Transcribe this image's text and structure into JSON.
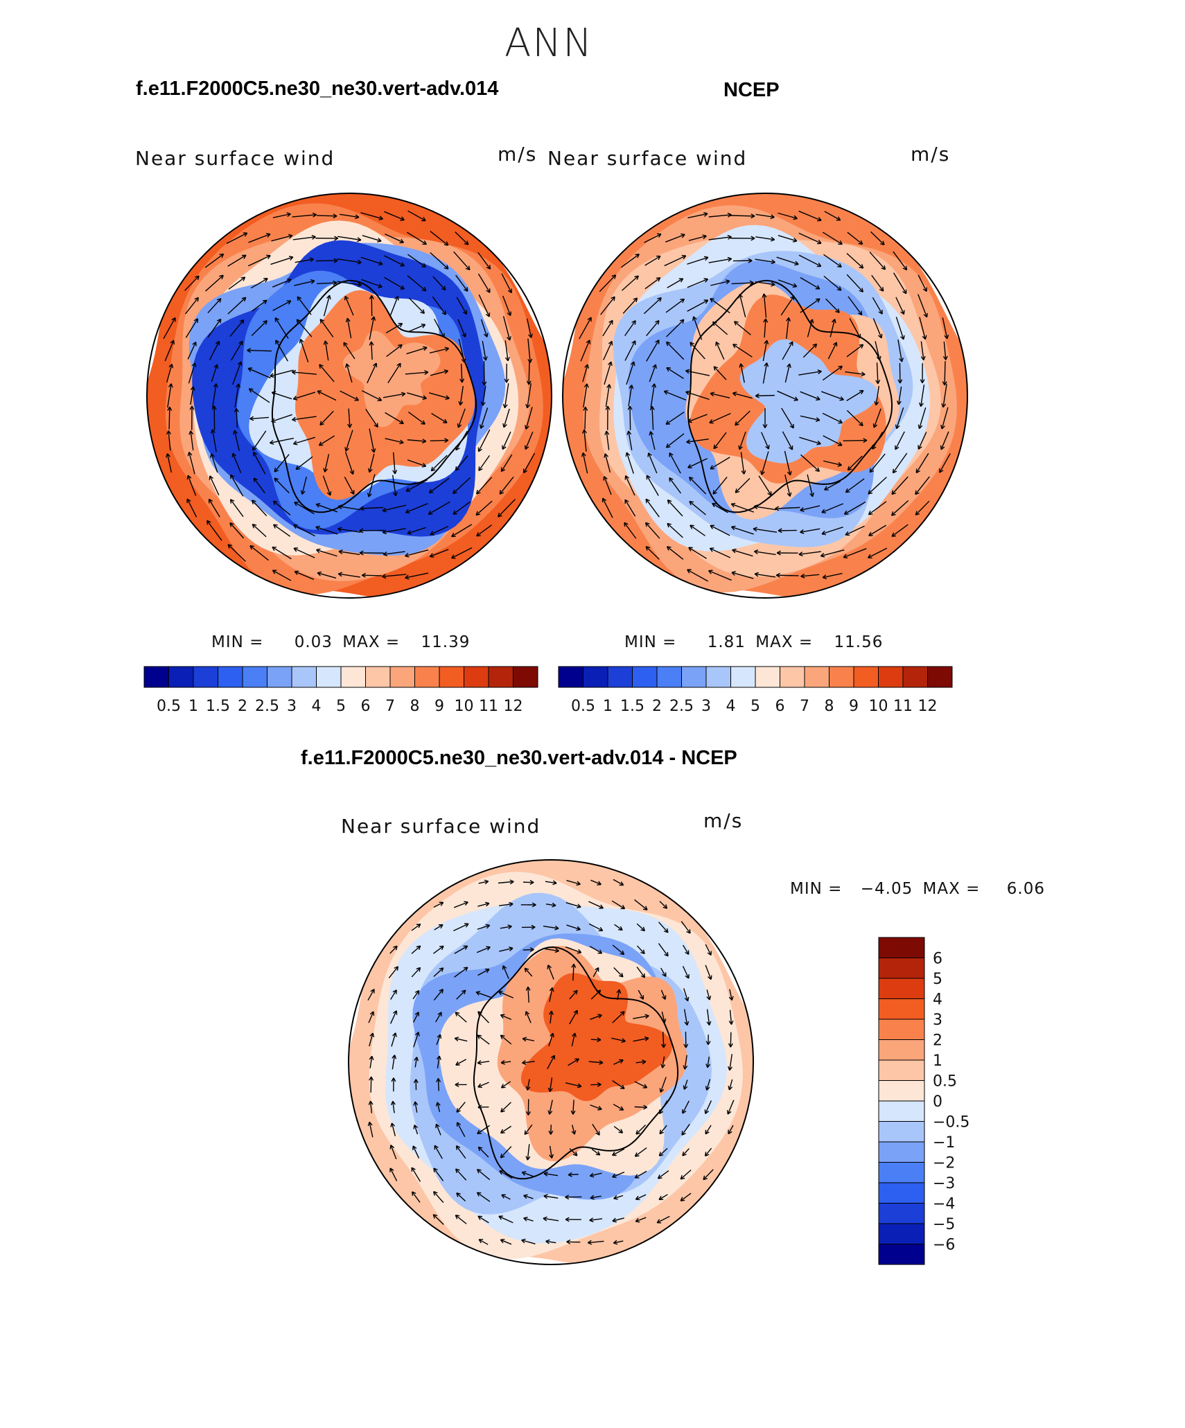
{
  "figure": {
    "title": "ANN",
    "panel_left_case": "f.e11.F2000C5.ne30_ne30.vert-adv.014",
    "panel_right_case": "NCEP",
    "diff_case": "f.e11.F2000C5.ne30_ne30.vert-adv.014 - NCEP"
  },
  "chart_data": [
    {
      "type": "heatmap",
      "projection": "south-polar stereographic",
      "case": "f.e11.F2000C5.ne30_ne30.vert-adv.014",
      "variable": "Near surface wind",
      "units": "m/s",
      "min_label": "MIN =",
      "min_value": "0.03",
      "max_label": "MAX =",
      "max_value": "11.39",
      "colorbar": {
        "orientation": "horizontal",
        "labels": [
          "0.5",
          "1",
          "1.5",
          "2",
          "2.5",
          "3",
          "4",
          "5",
          "6",
          "7",
          "8",
          "9",
          "10",
          "11",
          "12"
        ],
        "colors": [
          "#00008e",
          "#0a1fb5",
          "#1c3fd8",
          "#2d5ff0",
          "#4a7ff5",
          "#7aa2f7",
          "#a9c6fa",
          "#d6e6fc",
          "#fde6d6",
          "#fdc6a7",
          "#fba57b",
          "#f9824c",
          "#f25d22",
          "#dc3c0f",
          "#b4240a",
          "#7d0a03"
        ]
      },
      "vectors": "overlaid near-surface wind vectors",
      "grid": false
    },
    {
      "type": "heatmap",
      "projection": "south-polar stereographic",
      "case": "NCEP",
      "variable": "Near surface wind",
      "units": "m/s",
      "min_label": "MIN =",
      "min_value": "1.81",
      "max_label": "MAX =",
      "max_value": "11.56",
      "colorbar": {
        "orientation": "horizontal",
        "labels": [
          "0.5",
          "1",
          "1.5",
          "2",
          "2.5",
          "3",
          "4",
          "5",
          "6",
          "7",
          "8",
          "9",
          "10",
          "11",
          "12"
        ],
        "colors": [
          "#00008e",
          "#0a1fb5",
          "#1c3fd8",
          "#2d5ff0",
          "#4a7ff5",
          "#7aa2f7",
          "#a9c6fa",
          "#d6e6fc",
          "#fde6d6",
          "#fdc6a7",
          "#fba57b",
          "#f9824c",
          "#f25d22",
          "#dc3c0f",
          "#b4240a",
          "#7d0a03"
        ]
      },
      "vectors": "overlaid near-surface wind vectors",
      "grid": false
    },
    {
      "type": "heatmap",
      "projection": "south-polar stereographic",
      "case": "f.e11.F2000C5.ne30_ne30.vert-adv.014 - NCEP",
      "variable": "Near surface wind",
      "units": "m/s",
      "min_label": "MIN =",
      "min_value": "−4.05",
      "max_label": "MAX =",
      "max_value": "6.06",
      "colorbar": {
        "orientation": "vertical",
        "labels": [
          "6",
          "5",
          "4",
          "3",
          "2",
          "1",
          "0.5",
          "0",
          "−0.5",
          "−1",
          "−2",
          "−3",
          "−4",
          "−5",
          "−6"
        ],
        "colors": [
          "#7d0a03",
          "#b4240a",
          "#dc3c0f",
          "#f25d22",
          "#f9824c",
          "#fba57b",
          "#fdc6a7",
          "#fde6d6",
          "#d6e6fc",
          "#a9c6fa",
          "#7aa2f7",
          "#4a7ff5",
          "#2d5ff0",
          "#1c3fd8",
          "#0a1fb5",
          "#00008e"
        ]
      },
      "vectors": "overlaid near-surface wind difference vectors",
      "grid": false
    }
  ]
}
